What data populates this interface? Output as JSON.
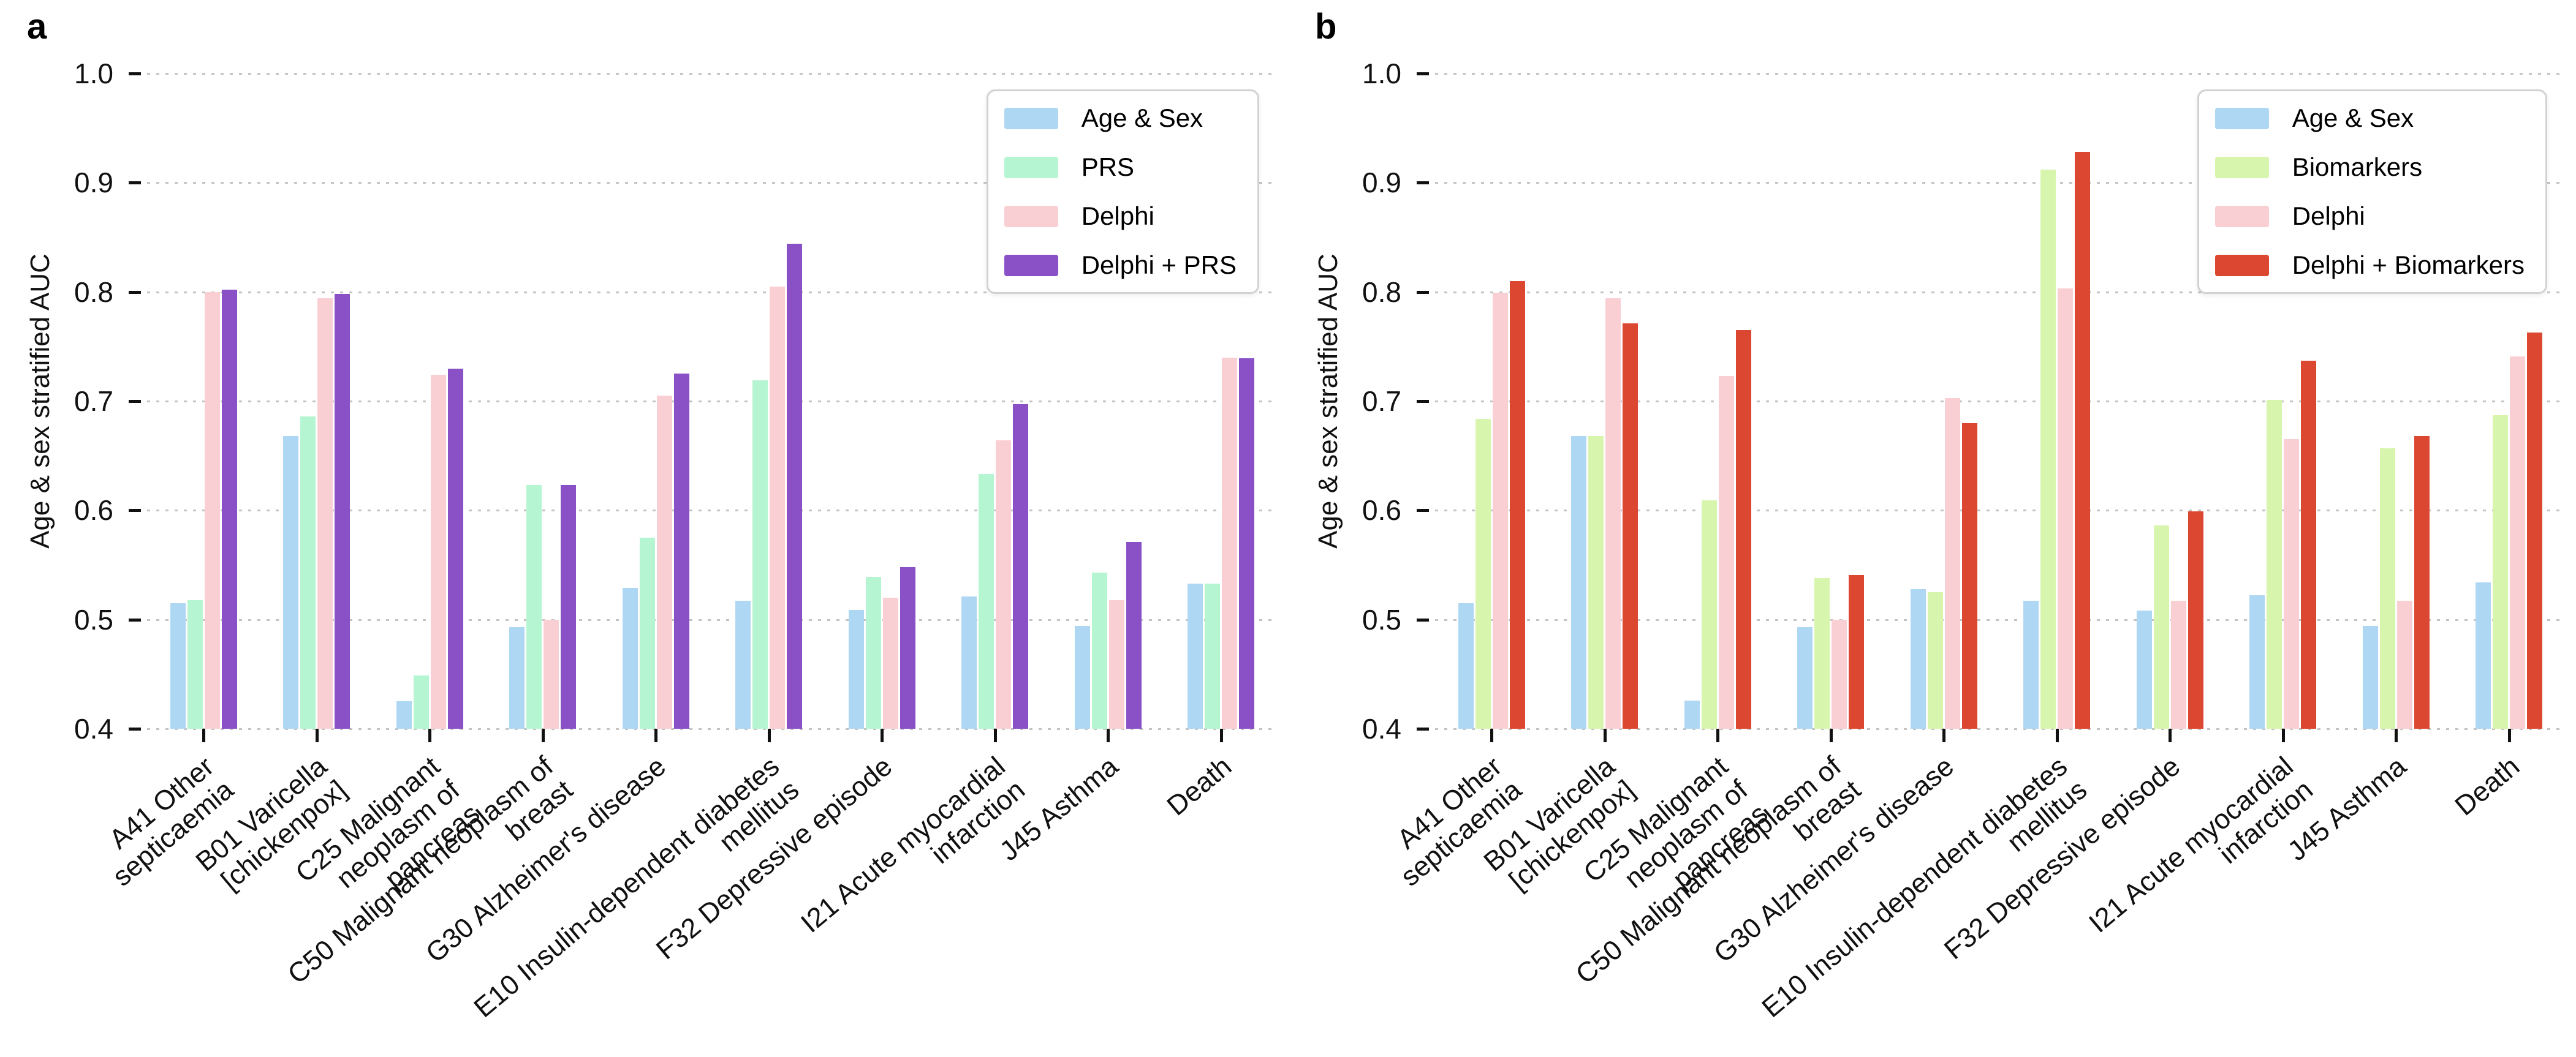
{
  "figure": {
    "background": "#ffffff",
    "text_color": "#111111",
    "gridline_color": "#c3c3c3",
    "gridline_style": "dotted"
  },
  "chart_data": [
    {
      "type": "bar",
      "panel_label": "a",
      "ylabel": "Age & sex stratified AUC",
      "ylim": [
        0.4,
        1.0
      ],
      "yticks": [
        "1.0",
        "0.9",
        "0.8",
        "0.7",
        "0.6",
        "0.5",
        "0.4"
      ],
      "grid": "horizontal dotted",
      "legend_position": "top-right",
      "categories": [
        "A41 Other septicaemia",
        "B01 Varicella [chickenpox]",
        "C25 Malignant neoplasm of\npancreas",
        "C50 Malignant neoplasm of\nbreast",
        "G30 Alzheimer's disease",
        "E10 Insulin-dependent diabetes\nmellitus",
        "F32 Depressive episode",
        "I21 Acute myocardial\ninfarction",
        "J45 Asthma",
        "Death"
      ],
      "series": [
        {
          "name": "Age & Sex",
          "color": "#aed7f4",
          "values": [
            0.515,
            0.668,
            0.425,
            0.493,
            0.529,
            0.517,
            0.509,
            0.521,
            0.494,
            0.533
          ]
        },
        {
          "name": "PRS",
          "color": "#b5f5d1",
          "values": [
            0.518,
            0.686,
            0.449,
            0.623,
            0.575,
            0.719,
            0.539,
            0.633,
            0.543,
            0.533
          ]
        },
        {
          "name": "Delphi",
          "color": "#facfd4",
          "values": [
            0.8,
            0.794,
            0.724,
            0.5,
            0.705,
            0.805,
            0.52,
            0.664,
            0.518,
            0.74
          ]
        },
        {
          "name": "Delphi + PRS",
          "color": "#8951c5",
          "values": [
            0.802,
            0.798,
            0.73,
            0.623,
            0.725,
            0.844,
            0.548,
            0.697,
            0.571,
            0.739
          ]
        }
      ]
    },
    {
      "type": "bar",
      "panel_label": "b",
      "ylabel": "Age & sex stratified AUC",
      "ylim": [
        0.4,
        1.0
      ],
      "yticks": [
        "1.0",
        "0.9",
        "0.8",
        "0.7",
        "0.6",
        "0.5",
        "0.4"
      ],
      "grid": "horizontal dotted",
      "legend_position": "top-right",
      "categories": [
        "A41 Other septicaemia",
        "B01 Varicella [chickenpox]",
        "C25 Malignant neoplasm of\npancreas",
        "C50 Malignant neoplasm of\nbreast",
        "G30 Alzheimer's disease",
        "E10 Insulin-dependent diabetes\nmellitus",
        "F32 Depressive episode",
        "I21 Acute myocardial\ninfarction",
        "J45 Asthma",
        "Death"
      ],
      "series": [
        {
          "name": "Age & Sex",
          "color": "#aed7f4",
          "values": [
            0.515,
            0.668,
            0.426,
            0.493,
            0.528,
            0.517,
            0.508,
            0.522,
            0.494,
            0.534
          ]
        },
        {
          "name": "Biomarkers",
          "color": "#d8f5ae",
          "values": [
            0.684,
            0.668,
            0.609,
            0.538,
            0.525,
            0.912,
            0.586,
            0.701,
            0.657,
            0.687
          ]
        },
        {
          "name": "Delphi",
          "color": "#facfd4",
          "values": [
            0.799,
            0.794,
            0.723,
            0.5,
            0.703,
            0.803,
            0.517,
            0.665,
            0.517,
            0.741
          ]
        },
        {
          "name": "Delphi + Biomarkers",
          "color": "#dc4731",
          "values": [
            0.81,
            0.771,
            0.765,
            0.541,
            0.68,
            0.928,
            0.599,
            0.737,
            0.668,
            0.763
          ]
        }
      ]
    }
  ]
}
